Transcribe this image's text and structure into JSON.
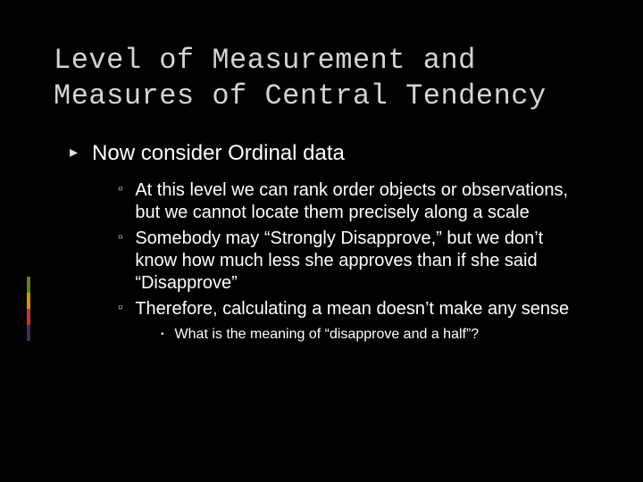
{
  "slide": {
    "title": "Level of Measurement and Measures of Central Tendency",
    "title_font": "Consolas",
    "title_fontsize": 32,
    "title_color": "#d0d4d8",
    "body_font": "Segoe UI",
    "background_color": "#000000",
    "text_color": "#ffffff",
    "bullets": {
      "level1": [
        "Now consider Ordinal data"
      ],
      "level2": [
        "At this level we can rank order objects or observations, but we cannot locate them precisely along a scale",
        "Somebody may “Strongly Disapprove,” but we don’t know how much less she approves than if she said “Disapprove”",
        "Therefore, calculating a mean doesn’t make any sense"
      ],
      "level3": [
        "What is the meaning of “disapprove and a half”?"
      ]
    },
    "bullet_markers": {
      "l1": "▸",
      "l2": "▫",
      "l3": "▪"
    },
    "accent_bar_colors": [
      "#6a7a2a",
      "#c99a00",
      "#c0392b",
      "#4a2a5a"
    ]
  }
}
